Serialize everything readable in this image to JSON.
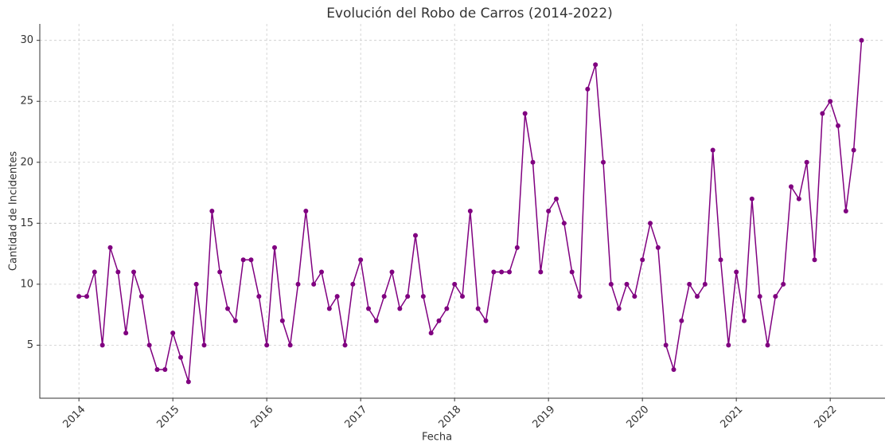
{
  "chart_data": {
    "type": "line",
    "title": "Evolución del Robo de Carros (2014-2022)",
    "x_label": "Fecha",
    "y_label": "Cantidad de Incidentes",
    "x": [
      "2014-01",
      "2014-02",
      "2014-03",
      "2014-04",
      "2014-05",
      "2014-06",
      "2014-07",
      "2014-08",
      "2014-09",
      "2014-10",
      "2014-11",
      "2014-12",
      "2015-01",
      "2015-02",
      "2015-03",
      "2015-04",
      "2015-05",
      "2015-06",
      "2015-07",
      "2015-08",
      "2015-09",
      "2015-10",
      "2015-11",
      "2015-12",
      "2016-01",
      "2016-02",
      "2016-03",
      "2016-04",
      "2016-05",
      "2016-06",
      "2016-07",
      "2016-08",
      "2016-09",
      "2016-10",
      "2016-11",
      "2016-12",
      "2017-01",
      "2017-02",
      "2017-03",
      "2017-04",
      "2017-05",
      "2017-06",
      "2017-07",
      "2017-08",
      "2017-09",
      "2017-10",
      "2017-11",
      "2017-12",
      "2018-01",
      "2018-02",
      "2018-03",
      "2018-04",
      "2018-05",
      "2018-06",
      "2018-07",
      "2018-08",
      "2018-09",
      "2018-10",
      "2018-11",
      "2018-12",
      "2019-01",
      "2019-02",
      "2019-03",
      "2019-04",
      "2019-05",
      "2019-06",
      "2019-07",
      "2019-08",
      "2019-09",
      "2019-10",
      "2019-11",
      "2019-12",
      "2020-01",
      "2020-02",
      "2020-03",
      "2020-04",
      "2020-05",
      "2020-06",
      "2020-07",
      "2020-08",
      "2020-09",
      "2020-10",
      "2020-11",
      "2020-12",
      "2021-01",
      "2021-02",
      "2021-03",
      "2021-04",
      "2021-05",
      "2021-06",
      "2021-07",
      "2021-08",
      "2021-09",
      "2021-10",
      "2021-11",
      "2021-12",
      "2022-01",
      "2022-02",
      "2022-03",
      "2022-04",
      "2022-05"
    ],
    "series": [
      {
        "name": "Incidentes",
        "color": "#800080",
        "values": [
          9,
          9,
          11,
          5,
          13,
          11,
          6,
          11,
          9,
          5,
          3,
          3,
          6,
          4,
          2,
          10,
          5,
          16,
          11,
          8,
          7,
          12,
          12,
          9,
          5,
          13,
          7,
          5,
          10,
          16,
          10,
          11,
          8,
          9,
          5,
          10,
          12,
          8,
          7,
          9,
          11,
          8,
          9,
          14,
          9,
          6,
          7,
          8,
          10,
          9,
          16,
          8,
          7,
          11,
          11,
          11,
          13,
          24,
          20,
          11,
          16,
          17,
          15,
          11,
          9,
          26,
          28,
          20,
          10,
          8,
          10,
          9,
          12,
          15,
          13,
          5,
          3,
          7,
          10,
          9,
          10,
          21,
          12,
          5,
          11,
          7,
          17,
          9,
          5,
          9,
          10,
          18,
          17,
          20,
          12,
          24,
          25,
          23,
          16,
          21,
          30
        ]
      }
    ],
    "xlim": [
      "2013-08",
      "2022-08"
    ],
    "xticks": [
      "2014",
      "2015",
      "2016",
      "2017",
      "2018",
      "2019",
      "2020",
      "2021",
      "2022"
    ],
    "ylim": [
      0.65,
      31.35
    ],
    "yticks": [
      5,
      10,
      15,
      20,
      25,
      30
    ],
    "grid": true
  }
}
